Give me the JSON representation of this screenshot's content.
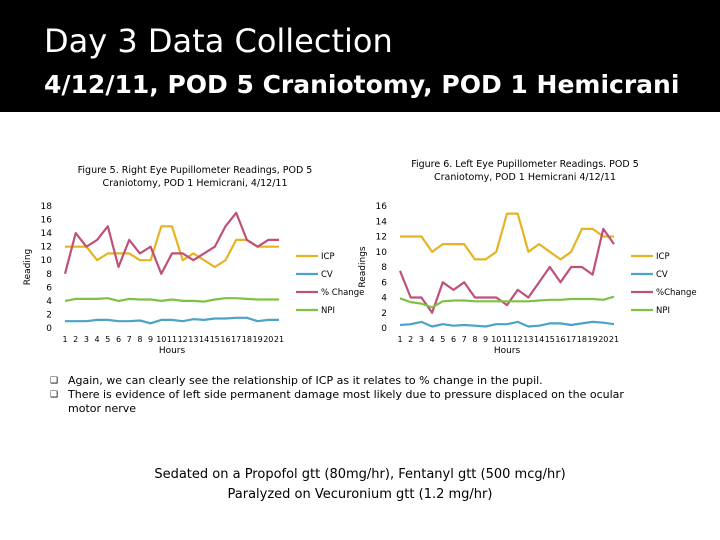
{
  "slide": {
    "title": "Day 3 Data Collection",
    "subtitle": "4/12/11, POD 5 Craniotomy, POD 1 Hemicrani"
  },
  "bullets": [
    "Again, we can clearly see the relationship of ICP as it relates to % change in the pupil.",
    "There is evidence of left side permanent damage most likely due to pressure displaced on the ocular motor nerve"
  ],
  "bullet_glyph": "❑",
  "footer": {
    "line1": "Sedated on a Propofol gtt (80mg/hr), Fentanyl gtt (500 mcg/hr)",
    "line2": "Paralyzed on Vecuronium gtt (1.2 mg/hr)"
  },
  "chart_data": [
    {
      "type": "line",
      "title": "Figure 5. Right Eye Pupillometer Readings, POD 5 Craniotomy, POD 1 Hemicrani, 4/12/11",
      "title_lines": [
        "Figure 5. Right Eye Pupillometer Readings, POD 5",
        "Craniotomy, POD 1 Hemicrani, 4/12/11"
      ],
      "xlabel": "Hours",
      "ylabel": "Reading",
      "ylim": [
        0,
        18
      ],
      "yticks": [
        0,
        2,
        4,
        6,
        8,
        10,
        12,
        14,
        16,
        18
      ],
      "x": [
        1,
        2,
        3,
        4,
        5,
        6,
        7,
        8,
        9,
        10,
        11,
        12,
        13,
        14,
        15,
        16,
        17,
        18,
        19,
        20,
        21
      ],
      "legend_position": "right",
      "grid": false,
      "series": [
        {
          "name": "ICP",
          "color": "#e6b422",
          "values": [
            12,
            12,
            12,
            10,
            11,
            11,
            11,
            10,
            10,
            15,
            15,
            10,
            11,
            10,
            9,
            10,
            13,
            13,
            12,
            12,
            12
          ]
        },
        {
          "name": "CV",
          "color": "#4aa3c8",
          "values": [
            1,
            1,
            1,
            1.2,
            1.2,
            1,
            1,
            1.1,
            0.7,
            1.2,
            1.2,
            1,
            1.3,
            1.2,
            1.4,
            1.4,
            1.5,
            1.5,
            1,
            1.2,
            1.2
          ]
        },
        {
          "name": "% Change",
          "color": "#c0507a",
          "values": [
            8,
            14,
            12,
            13,
            15,
            9,
            13,
            11,
            12,
            8,
            11,
            11,
            10,
            11,
            12,
            15,
            17,
            13,
            12,
            13,
            13
          ]
        },
        {
          "name": "NPI",
          "color": "#7dc242",
          "values": [
            4,
            4.3,
            4.3,
            4.3,
            4.4,
            4,
            4.3,
            4.2,
            4.2,
            4,
            4.2,
            4,
            4,
            3.9,
            4.2,
            4.4,
            4.4,
            4.3,
            4.2,
            4.2,
            4.2
          ]
        }
      ]
    },
    {
      "type": "line",
      "title": "Figure 6. Left Eye Pupillometer Readings. POD 5 Craniotomy, POD 1 Hemicrani 4/12/11",
      "title_lines": [
        "Figure 6. Left Eye Pupillometer Readings. POD 5",
        "Craniotomy, POD 1 Hemicrani 4/12/11"
      ],
      "xlabel": "Hours",
      "ylabel": "Readings",
      "ylim": [
        0,
        16
      ],
      "yticks": [
        0,
        2,
        4,
        6,
        8,
        10,
        12,
        14,
        16
      ],
      "x": [
        1,
        2,
        3,
        4,
        5,
        6,
        7,
        8,
        9,
        10,
        11,
        12,
        13,
        14,
        15,
        16,
        17,
        18,
        19,
        20,
        21
      ],
      "legend_position": "right",
      "grid": false,
      "series": [
        {
          "name": "ICP",
          "color": "#e6b422",
          "values": [
            12,
            12,
            12,
            10,
            11,
            11,
            11,
            9,
            9,
            10,
            15,
            15,
            10,
            11,
            10,
            9,
            10,
            13,
            13,
            12,
            12
          ]
        },
        {
          "name": "CV",
          "color": "#4aa3c8",
          "values": [
            0.4,
            0.5,
            0.8,
            0.2,
            0.5,
            0.3,
            0.4,
            0.3,
            0.2,
            0.5,
            0.5,
            0.8,
            0.2,
            0.3,
            0.6,
            0.6,
            0.4,
            0.6,
            0.8,
            0.7,
            0.5
          ]
        },
        {
          "name": "%Change",
          "color": "#c0507a",
          "values": [
            7.5,
            4,
            4,
            2,
            6,
            5,
            6,
            4,
            4,
            4,
            3,
            5,
            4,
            6,
            8,
            6,
            8,
            8,
            7,
            13,
            11
          ]
        },
        {
          "name": "NPI",
          "color": "#7dc242",
          "values": [
            3.9,
            3.4,
            3.2,
            2.7,
            3.5,
            3.6,
            3.6,
            3.5,
            3.5,
            3.5,
            3.5,
            3.5,
            3.5,
            3.6,
            3.7,
            3.7,
            3.8,
            3.8,
            3.8,
            3.7,
            4.1
          ]
        }
      ]
    }
  ]
}
